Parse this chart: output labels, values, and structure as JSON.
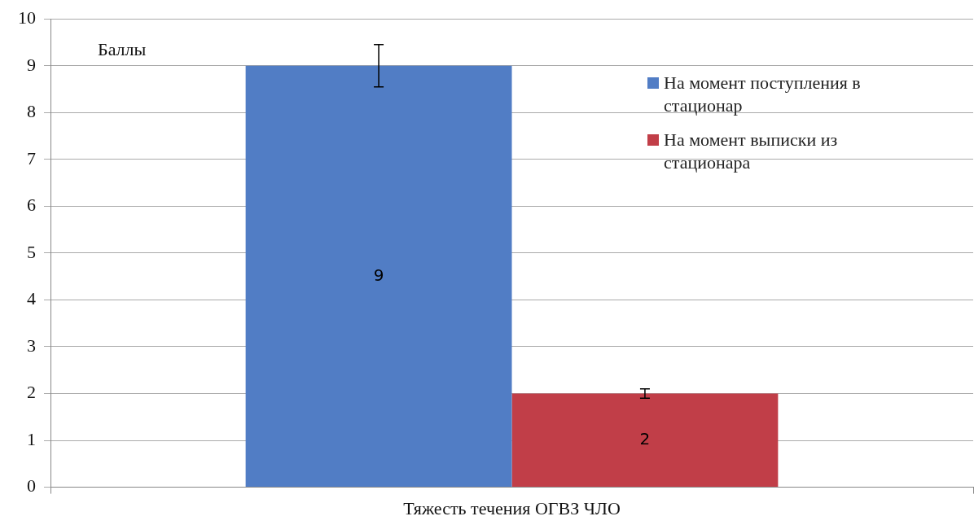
{
  "chart_data": {
    "type": "bar",
    "categories": [
      "Тяжесть течения ОГВЗ ЧЛО"
    ],
    "ylabel": "Баллы",
    "series": [
      {
        "name": "На момент поступления в стационар",
        "color": "#517dc5",
        "values": [
          9
        ],
        "errors": [
          0.45
        ]
      },
      {
        "name": "На момент выписки из стационара",
        "color": "#c13e48",
        "values": [
          2
        ],
        "errors": [
          0.1
        ]
      }
    ],
    "ylim": [
      0,
      10
    ],
    "yticks": [
      0,
      1,
      2,
      3,
      4,
      5,
      6,
      7,
      8,
      9,
      10
    ],
    "grid": "y",
    "legend": "top right",
    "data_labels": true
  }
}
